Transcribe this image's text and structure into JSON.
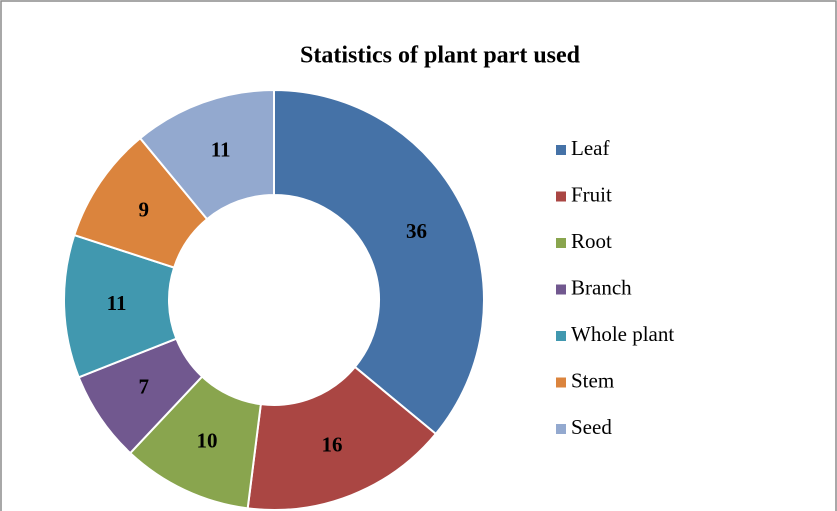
{
  "chart_data": {
    "type": "donut",
    "title": "Statistics of plant part used",
    "categories": [
      "Leaf",
      "Fruit",
      "Root",
      "Branch",
      "Whole plant",
      "Stem",
      "Seed"
    ],
    "values": [
      36,
      16,
      10,
      7,
      11,
      9,
      11
    ],
    "colors": [
      "#4572a7",
      "#aa4643",
      "#89a54e",
      "#71588f",
      "#4198af",
      "#db843d",
      "#93a9cf"
    ],
    "legend": "right"
  }
}
